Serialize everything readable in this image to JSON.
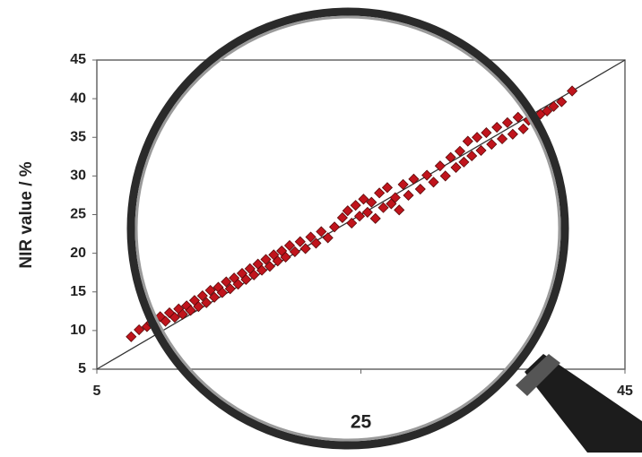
{
  "chart_data": {
    "type": "scatter",
    "y_label": "NIR value / %",
    "xlim": [
      5,
      45
    ],
    "xticks": [
      5,
      25,
      45
    ],
    "ylim": [
      5,
      45
    ],
    "yticks": [
      5,
      10,
      15,
      20,
      25,
      30,
      35,
      40,
      45
    ],
    "grid": false,
    "series": [
      {
        "color": "#c0141c",
        "x": [
          7.6,
          8.2,
          8.8,
          9.1,
          9.5,
          9.8,
          10.2,
          10.5,
          10.9,
          11.2,
          11.5,
          11.8,
          12.1,
          12.4,
          12.7,
          13.0,
          13.3,
          13.6,
          13.9,
          14.2,
          14.5,
          14.8,
          15.1,
          15.4,
          15.7,
          16.0,
          16.3,
          16.6,
          16.9,
          17.2,
          17.5,
          17.8,
          18.1,
          18.4,
          18.7,
          19.0,
          19.3,
          19.6,
          20.0,
          20.4,
          20.8,
          21.2,
          21.6,
          22.0,
          22.5,
          23.0,
          23.6,
          24.0,
          24.3,
          24.6,
          24.9,
          25.2,
          25.5,
          25.8,
          26.1,
          26.4,
          26.7,
          27.0,
          27.3,
          27.6,
          27.9,
          28.2,
          28.6,
          29.0,
          29.5,
          30.0,
          30.5,
          31.0,
          31.4,
          31.8,
          32.2,
          32.5,
          32.8,
          33.1,
          33.4,
          33.8,
          34.1,
          34.5,
          34.9,
          35.3,
          35.7,
          36.1,
          36.5,
          36.9,
          37.3,
          37.7,
          38.2,
          38.6,
          39.1,
          39.6,
          40.2,
          41.0
        ],
        "values": [
          9.2,
          10.1,
          10.5,
          11.0,
          10.4,
          11.8,
          11.2,
          12.3,
          11.7,
          12.8,
          12.1,
          13.2,
          12.6,
          13.9,
          13.1,
          14.5,
          13.6,
          15.2,
          14.3,
          15.6,
          14.9,
          16.3,
          15.4,
          16.8,
          16.0,
          17.4,
          16.6,
          18.0,
          17.2,
          18.6,
          17.8,
          19.2,
          18.3,
          19.8,
          19.0,
          20.3,
          19.5,
          21.0,
          20.2,
          21.5,
          20.6,
          22.1,
          21.3,
          22.8,
          22.0,
          23.4,
          24.6,
          25.5,
          23.9,
          26.2,
          24.8,
          27.0,
          25.3,
          26.6,
          24.5,
          27.8,
          25.9,
          28.5,
          26.4,
          27.2,
          25.6,
          28.9,
          27.5,
          29.6,
          28.3,
          30.1,
          29.2,
          31.3,
          30.0,
          32.4,
          31.1,
          33.2,
          31.8,
          34.5,
          32.6,
          35.0,
          33.3,
          35.6,
          34.1,
          36.3,
          34.8,
          36.9,
          35.4,
          37.6,
          36.1,
          37.2,
          36.8,
          38.0,
          38.4,
          39.0,
          39.6,
          41.0
        ]
      }
    ]
  }
}
